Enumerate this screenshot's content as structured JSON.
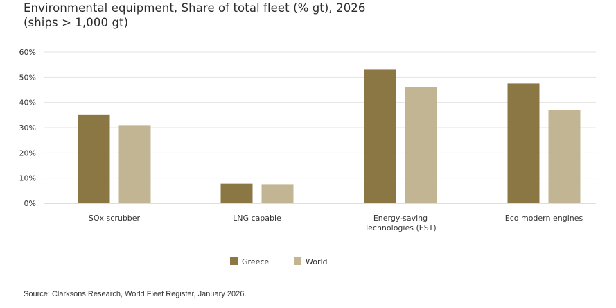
{
  "title_line1": "Environmental equipment, Share of total fleet (% gt), 2026",
  "title_line2": "(ships > 1,000 gt)",
  "source": "Source: Clarksons Research, World Fleet Register, January 2026.",
  "colors": {
    "Greece": "#8b7743",
    "World": "#c2b593",
    "grid": "#e3e3e3",
    "axis": "#bdbdbd"
  },
  "chart_data": {
    "type": "bar",
    "categories": [
      "SOx scrubber",
      "LNG capable",
      "Energy-saving Technologies (EST)",
      "Eco modern engines"
    ],
    "category_lines": [
      [
        "SOx scrubber"
      ],
      [
        "LNG capable"
      ],
      [
        "Energy-saving",
        "Technologies (EST)"
      ],
      [
        "Eco modern engines"
      ]
    ],
    "series": [
      {
        "name": "Greece",
        "values": [
          35,
          7.8,
          53,
          47.5
        ]
      },
      {
        "name": "World",
        "values": [
          31,
          7.6,
          46,
          37
        ]
      }
    ],
    "ylim": [
      0,
      60
    ],
    "yticks": [
      0,
      10,
      20,
      30,
      40,
      50,
      60
    ],
    "ytick_labels": [
      "0%",
      "10%",
      "20%",
      "30%",
      "40%",
      "50%",
      "60%"
    ],
    "grid": true,
    "legend": "bottom-center"
  }
}
